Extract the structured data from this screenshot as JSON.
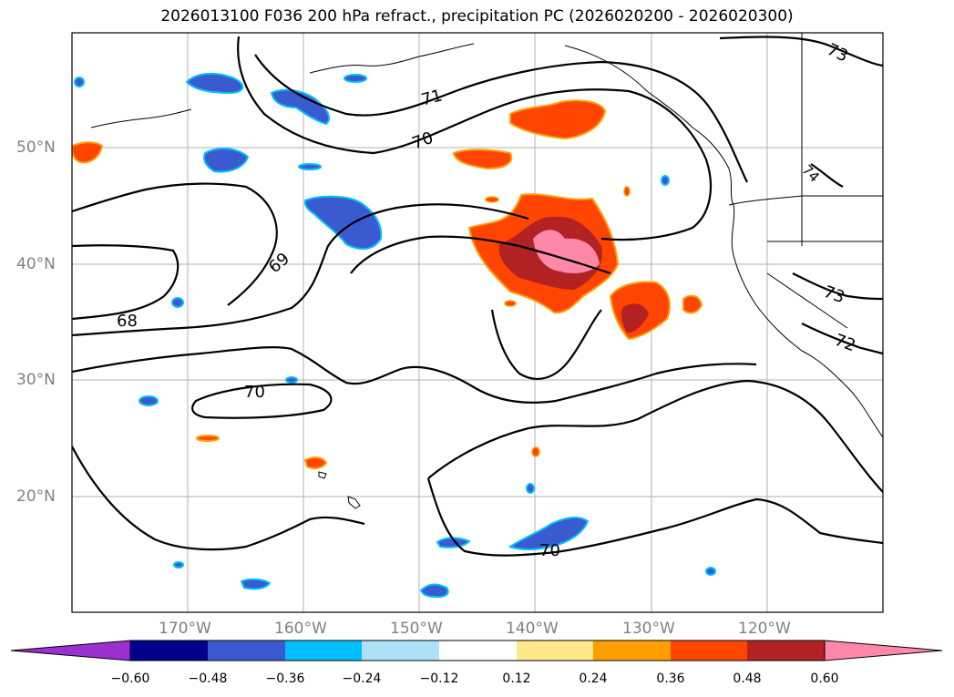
{
  "title": "2026013100 F036 200 hPa refract., precipitation PC (2026020200 - 2026020300)",
  "lat_labels": [
    "50°N",
    "40°N",
    "30°N",
    "20°N"
  ],
  "lon_labels": [
    "170°W",
    "160°W",
    "150°W",
    "140°W",
    "130°W",
    "120°W"
  ],
  "contour_labels": [
    "73",
    "71",
    "70",
    "69",
    "68",
    "70",
    "73",
    "72",
    "70",
    "74"
  ],
  "colorbar": {
    "labels": [
      "−0.60",
      "−0.48",
      "−0.36",
      "−0.24",
      "−0.12",
      "0.12",
      "0.24",
      "0.36",
      "0.48",
      "0.60"
    ],
    "colors": [
      "#9b30d0",
      "#00008b",
      "#3a5bd0",
      "#00bfff",
      "#aee0f8",
      "#ffffff",
      "#ffe88a",
      "#ffa000",
      "#ff4500",
      "#b22222",
      "#ff88aa"
    ]
  }
}
